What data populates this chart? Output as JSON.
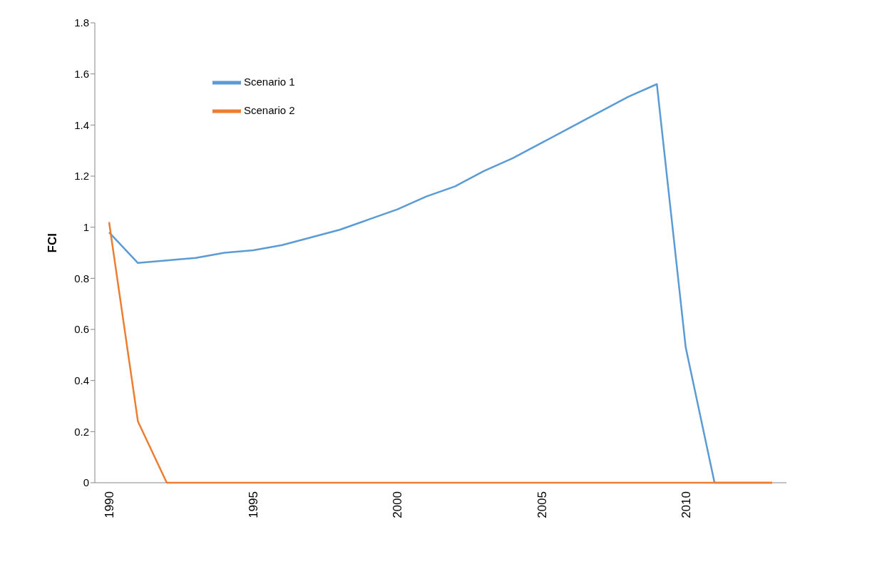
{
  "chart_data": {
    "type": "line",
    "ylabel": "FCI",
    "categories": [
      "1990",
      null,
      null,
      null,
      null,
      "1995",
      null,
      null,
      null,
      null,
      "2000",
      null,
      null,
      null,
      null,
      "2005",
      null,
      null,
      null,
      null,
      "2010",
      null,
      null,
      null
    ],
    "series": [
      {
        "name": "Scenario 1",
        "color": "#5b9bd5",
        "values": [
          0.98,
          0.86,
          0.87,
          0.88,
          0.9,
          0.91,
          0.93,
          0.96,
          0.99,
          1.03,
          1.07,
          1.12,
          1.16,
          1.22,
          1.27,
          1.33,
          1.39,
          1.45,
          1.51,
          1.56,
          0.53,
          0,
          0,
          0
        ]
      },
      {
        "name": "Scenario 2",
        "color": "#ed7d31",
        "values": [
          1.02,
          0.24,
          0,
          0,
          0,
          0,
          0,
          0,
          0,
          0,
          0,
          0,
          0,
          0,
          0,
          0,
          0,
          0,
          0,
          0,
          0,
          0,
          0,
          0
        ]
      }
    ],
    "ylim": [
      0,
      1.8
    ],
    "yticks": [
      0,
      0.2,
      0.4,
      0.6,
      0.8,
      1,
      1.2,
      1.4,
      1.6,
      1.8
    ],
    "grid": false,
    "legend": "top left",
    "marker": "none",
    "line_style": "solid"
  }
}
